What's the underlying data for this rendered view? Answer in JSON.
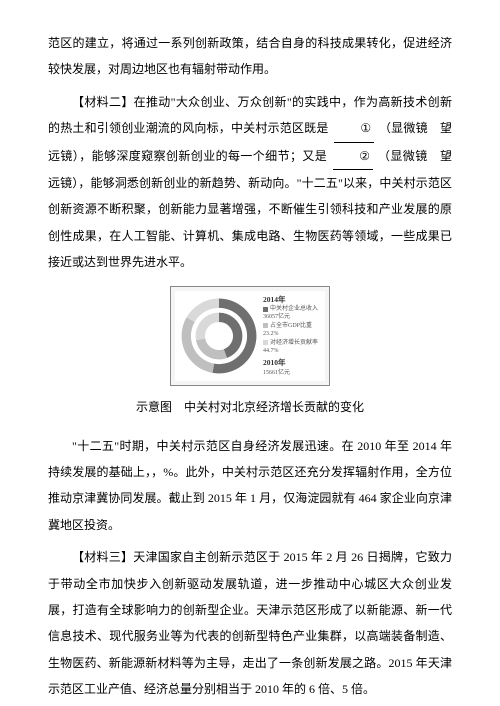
{
  "paragraphs": {
    "p1": "范区的建立，将通过一系列创新政策，结合自身的科技成果转化，促进经济较快发展，对周边地区也有辐射带动作用。",
    "p2a": "【材料二】在推动\"大众创业、万众创新\"的实践中，作为高新技术创新的热土和引领创业潮流的风向标，中关村示范区既是",
    "p2blank1": "①",
    "p2b": "（显微镜　望远镜），能够深度窥察创新创业的每一个细节；又是",
    "p2blank2": "②",
    "p2c": "（显微镜　望远镜），能够洞悉创新创业的新趋势、新动向。\"十二五\"以来，中关村示范区创新资源不断积聚，创新能力显著增强，不断催生引领科技和产业发展的原创性成果，在人工智能、计算机、集成电路、生物医药等领域，一些成果已接近或达到世界先进水平。",
    "caption": "示意图　中关村对北京经济增长贡献的变化",
    "p3": "\"十二五\"时期，中关村示范区自身经济发展迅速。在 2010 年至 2014 年持续发展的基础上，，%。此外，中关村示范区还充分发挥辐射作用，全方位推动京津冀协同发展。截止到 2015 年 1 月，仅海淀园就有 464 家企业向京津冀地区投资。",
    "p4": "【材料三】天津国家自主创新示范区于 2015 年 2 月 26 日揭牌，它致力于带动全市加快步入创新驱动发展轨道，进一步推动中心城区大众创业发展，打造有全球影响力的创新型企业。天津示范区形成了以新能源、新一代信息技术、现代服务业等为代表的创新型特色产业集群，以高端装备制造、生物医药、新能源新材料等为主导，走出了一条创新发展之路。2015 年天津示范区工业产值、经济总量分别相当于 2010 年的 6 倍、5 倍。"
  },
  "chart": {
    "type": "concentric-donut",
    "background_color": "#ffffff",
    "border_color": "#888888",
    "years": {
      "outer": {
        "label": "2014年",
        "segments": [
          {
            "name": "中关村企业总收入",
            "value_label": "36057亿元",
            "color": "#6f6f6f"
          },
          {
            "name": "占全市GDP比重",
            "value_label": "23.2%",
            "color": "#bfbfbf"
          },
          {
            "name": "对经济增长贡献率",
            "value_label": "44.7%",
            "color": "#d9d9d9"
          }
        ]
      },
      "inner": {
        "label": "2010年",
        "segments": [
          {
            "name": "中关村企业总收入",
            "value_label": "15661亿元",
            "color": "#6f6f6f"
          },
          {
            "name": "占全市GDP比重",
            "value_label": "18.5%",
            "color": "#bfbfbf"
          },
          {
            "name": "对经济增长贡献率",
            "value_label": "23.8%",
            "color": "#d9d9d9"
          }
        ]
      }
    },
    "outer_arcs": [
      {
        "start": 0,
        "end": 190,
        "color": "#6f6f6f"
      },
      {
        "start": 190,
        "end": 300,
        "color": "#bfbfbf"
      },
      {
        "start": 300,
        "end": 360,
        "color": "#d9d9d9"
      }
    ],
    "inner_arcs": [
      {
        "start": 0,
        "end": 160,
        "color": "#6f6f6f"
      },
      {
        "start": 160,
        "end": 260,
        "color": "#bfbfbf"
      },
      {
        "start": 260,
        "end": 360,
        "color": "#d9d9d9"
      }
    ]
  }
}
